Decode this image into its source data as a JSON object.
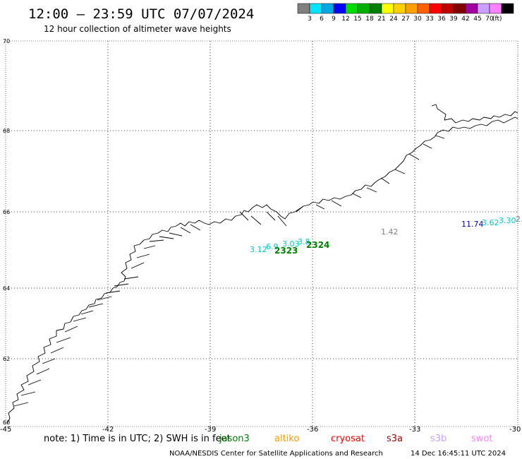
{
  "header": {
    "title": "12:00 – 23:59 UTC 07/07/2024",
    "subtitle": "12 hour collection of altimeter wave heights"
  },
  "legend": {
    "colors": [
      "#808080",
      "#00e5ff",
      "#00a8e6",
      "#0000ff",
      "#00dd00",
      "#00b000",
      "#008000",
      "#ffff00",
      "#ffd000",
      "#ffa000",
      "#ff6000",
      "#ff0000",
      "#c00000",
      "#800000",
      "#a000a0",
      "#c8a0ff",
      "#ff80ff",
      "#000000"
    ],
    "labels": [
      "3",
      "6",
      "9",
      "12",
      "15",
      "18",
      "21",
      "24",
      "27",
      "30",
      "33",
      "36",
      "39",
      "42",
      "45",
      "70"
    ],
    "unit": "(ft)"
  },
  "axes": {
    "lat_labels": [
      "70",
      "68",
      "66",
      "64",
      "62",
      "60"
    ],
    "lon_labels": [
      "-45",
      "-42",
      "-39",
      "-36",
      "-33",
      "-30"
    ]
  },
  "observations": [
    {
      "text": "3.12",
      "color": "#00c8c8"
    },
    {
      "text": "6.9",
      "color": "#00c8c8"
    },
    {
      "text": "3.03",
      "color": "#00c8c8"
    },
    {
      "text": "3.8",
      "color": "#00c8c8"
    },
    {
      "text": "1.42",
      "color": "#808080"
    },
    {
      "text": "11.74",
      "color": "#0000cc"
    },
    {
      "text": "3.62",
      "color": "#00c8c8"
    },
    {
      "text": "3.30",
      "color": "#00c8c8"
    },
    {
      "text": "2.",
      "color": "#808080"
    }
  ],
  "passes": [
    {
      "text": "2323",
      "color": "#008000"
    },
    {
      "text": "2324",
      "color": "#008000"
    }
  ],
  "footer": {
    "note": "note:  1) Time is in UTC; 2) SWH is in feet",
    "satellites": [
      {
        "name": "jason3",
        "color": "#008000"
      },
      {
        "name": "altiko",
        "color": "#ff9900"
      },
      {
        "name": "cryosat",
        "color": "#ff0000"
      },
      {
        "name": "s3a",
        "color": "#990000"
      },
      {
        "name": "s3b",
        "color": "#c8a0ff"
      },
      {
        "name": "swot",
        "color": "#ff80ff"
      }
    ],
    "credit": "NOAA/NESDIS Center for Satellite Applications and Research",
    "timestamp": "14 Dec 16:45:11 UTC 2024"
  }
}
